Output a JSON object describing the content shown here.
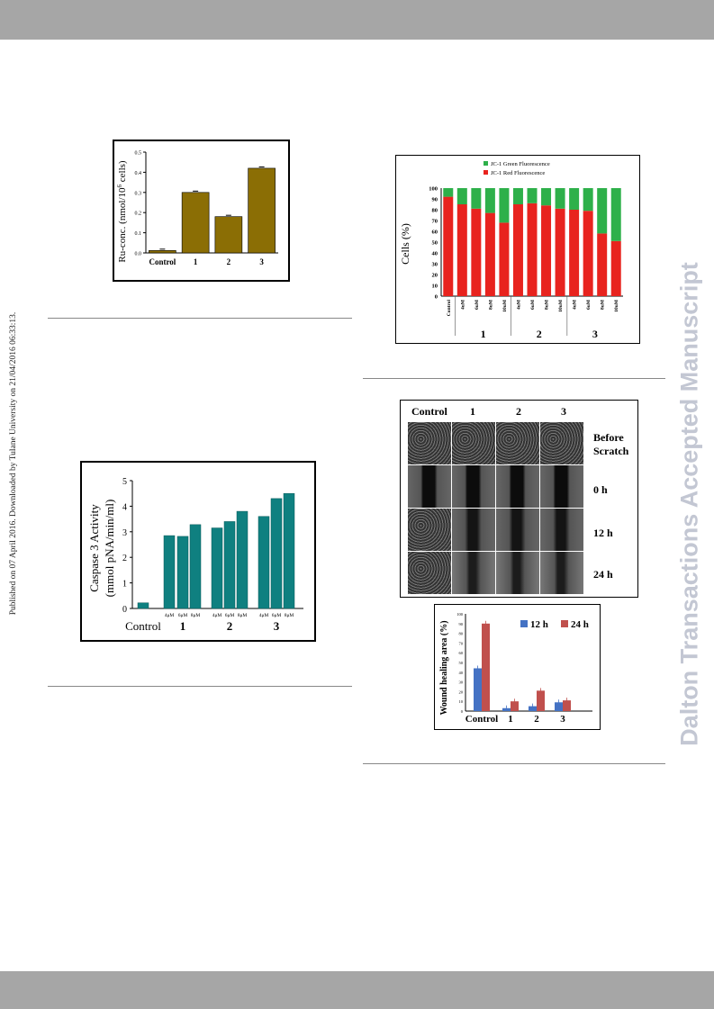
{
  "side_left_text": "Published on 07 April 2016. Downloaded by Tulane University on 21/04/2016 06:33:13.",
  "side_right_text": "Dalton Transactions Accepted Manuscript",
  "fig_ru": {
    "ylabel_main": "Ru-conc. (nmol/10",
    "ylabel_sup": "6",
    "ylabel_end": " cells)",
    "yticks": [
      "0.0",
      "0.1",
      "0.2",
      "0.3",
      "0.4",
      "0.5"
    ],
    "chart_data": {
      "type": "bar",
      "categories": [
        "Control",
        "1",
        "2",
        "3"
      ],
      "values": [
        0.012,
        0.3,
        0.18,
        0.42
      ],
      "ylim": [
        0,
        0.5
      ],
      "color": "#8b6e05"
    }
  },
  "fig_jc1": {
    "legend": [
      "JC-1 Green Fluorescence",
      "JC-1 Red Fluorescence"
    ],
    "ylabel": "Cells (%)",
    "yticks": [
      "0",
      "10",
      "20",
      "30",
      "40",
      "50",
      "60",
      "70",
      "80",
      "90",
      "100"
    ],
    "group_labels": [
      "1",
      "2",
      "3"
    ],
    "chart_data": {
      "type": "bar",
      "stacked": true,
      "categories": [
        "Control",
        "4uM",
        "6uM",
        "8uM",
        "10uM",
        "4uM",
        "6uM",
        "8uM",
        "10uM",
        "4uM",
        "6uM",
        "8uM",
        "10uM"
      ],
      "series": [
        {
          "name": "JC-1 Red Fluorescence",
          "color": "#e8231e",
          "values": [
            92,
            85,
            81,
            77,
            68,
            85,
            86,
            84,
            81,
            80,
            79,
            58,
            51
          ]
        },
        {
          "name": "JC-1 Green Fluorescence",
          "color": "#2eb04a",
          "values": [
            8,
            15,
            19,
            23,
            32,
            15,
            14,
            16,
            19,
            20,
            21,
            42,
            49
          ]
        }
      ],
      "ylim": [
        0,
        100
      ]
    }
  },
  "fig_casp": {
    "ylabel1": "Caspase 3 Activity",
    "ylabel2": "(mmol pNA/min/ml)",
    "yticks": [
      "0",
      "1",
      "2",
      "3",
      "4",
      "5"
    ],
    "dose_labels": [
      "4μM",
      "6μM",
      "8μM"
    ],
    "group_labels": [
      "Control",
      "1",
      "2",
      "3"
    ],
    "chart_data": {
      "type": "bar",
      "categories": [
        "Control",
        "1-4μM",
        "1-6μM",
        "1-8μM",
        "2-4μM",
        "2-6μM",
        "2-8μM",
        "3-4μM",
        "3-6μM",
        "3-8μM"
      ],
      "values": [
        0.22,
        2.85,
        2.82,
        3.28,
        3.15,
        3.4,
        3.8,
        3.6,
        4.3,
        4.5
      ],
      "ylim": [
        0,
        5
      ],
      "color": "#0f8080"
    }
  },
  "fig_wound": {
    "col_labels": [
      "Control",
      "1",
      "2",
      "3"
    ],
    "row_labels": [
      "Before Scratch",
      "0 h",
      "12 h",
      "24 h"
    ]
  },
  "fig_heal": {
    "ylabel": "Wound healing area (%)",
    "yticks": [
      "0",
      "10",
      "20",
      "30",
      "40",
      "50",
      "60",
      "70",
      "80",
      "90",
      "100"
    ],
    "chart_data": {
      "type": "bar",
      "categories": [
        "Control",
        "1",
        "2",
        "3"
      ],
      "series": [
        {
          "name": "12 h",
          "color": "#4472c4",
          "values": [
            44,
            3,
            5,
            9
          ]
        },
        {
          "name": "24 h",
          "color": "#c0504d",
          "values": [
            90,
            10,
            21,
            11
          ]
        }
      ],
      "ylim": [
        0,
        100
      ]
    }
  }
}
